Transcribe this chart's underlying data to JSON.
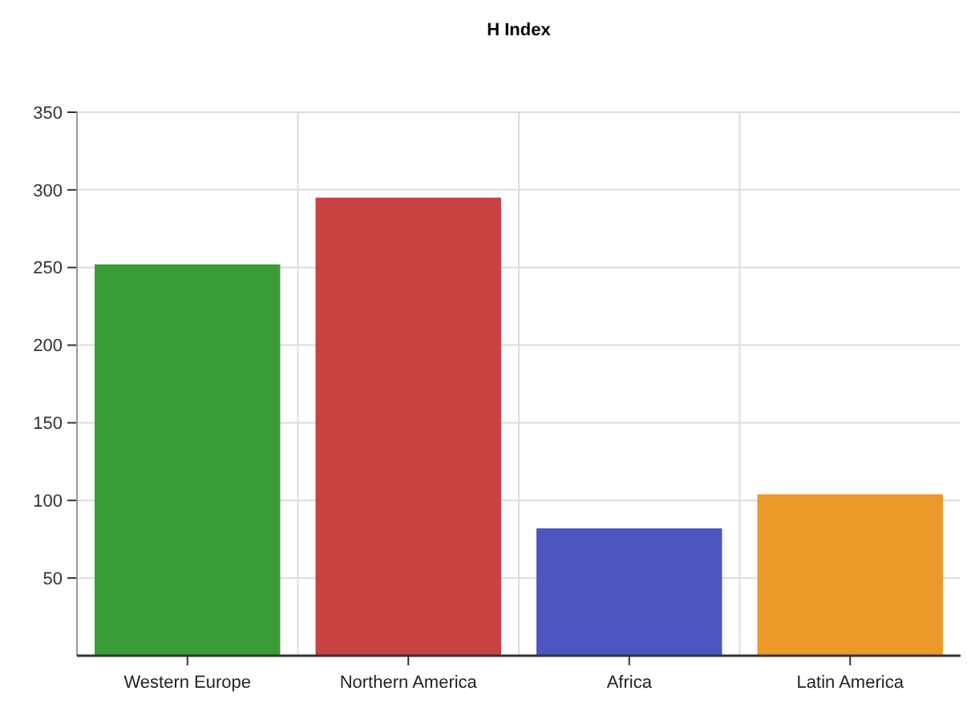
{
  "chart_data": {
    "type": "bar",
    "title": "H Index",
    "categories": [
      "Western Europe",
      "Northern America",
      "Africa",
      "Latin America"
    ],
    "values": [
      252,
      295,
      82,
      104
    ],
    "colors": [
      "#3a9c36",
      "#c94141",
      "#4b56c0",
      "#eb9a2a"
    ],
    "ylim": [
      0,
      350
    ],
    "yticks": [
      50,
      100,
      150,
      200,
      250,
      300,
      350
    ],
    "grid": true
  }
}
